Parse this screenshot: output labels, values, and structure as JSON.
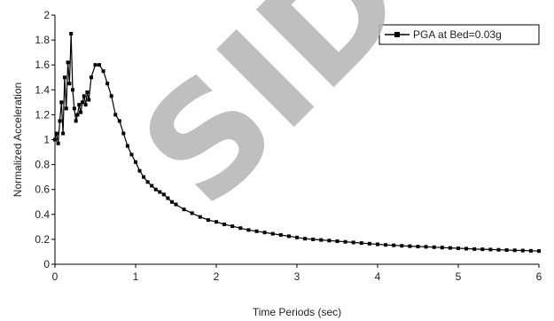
{
  "chart_data": {
    "type": "line",
    "xlabel": "Time Periods (sec)",
    "ylabel": "Normalized Acceleration",
    "xlim": [
      0,
      6
    ],
    "ylim": [
      0,
      2
    ],
    "xticks": [
      0,
      1,
      2,
      3,
      4,
      5,
      6
    ],
    "yticks": [
      0,
      0.2,
      0.4,
      0.6,
      0.8,
      1,
      1.2,
      1.4,
      1.6,
      1.8,
      2
    ],
    "ytick_labels": [
      "0",
      "0.2",
      "0.4",
      "0.6",
      "0.8",
      "1",
      "1.2",
      "1.4",
      "1.6",
      "1.8",
      "2"
    ],
    "grid": false,
    "legend_position": "top-right",
    "watermark": "SID",
    "series": [
      {
        "name": "PGA at Bed=0.03g",
        "color": "#000000",
        "marker": "square",
        "x": [
          0.0,
          0.02,
          0.04,
          0.06,
          0.08,
          0.1,
          0.12,
          0.14,
          0.16,
          0.18,
          0.2,
          0.22,
          0.24,
          0.26,
          0.28,
          0.3,
          0.32,
          0.34,
          0.36,
          0.38,
          0.4,
          0.42,
          0.45,
          0.5,
          0.55,
          0.6,
          0.65,
          0.7,
          0.75,
          0.8,
          0.85,
          0.9,
          0.95,
          1.0,
          1.05,
          1.1,
          1.15,
          1.2,
          1.25,
          1.3,
          1.35,
          1.4,
          1.45,
          1.5,
          1.6,
          1.7,
          1.8,
          1.9,
          2.0,
          2.1,
          2.2,
          2.3,
          2.4,
          2.5,
          2.6,
          2.7,
          2.8,
          2.9,
          3.0,
          3.1,
          3.2,
          3.3,
          3.4,
          3.5,
          3.6,
          3.7,
          3.8,
          3.9,
          4.0,
          4.1,
          4.2,
          4.3,
          4.4,
          4.5,
          4.6,
          4.7,
          4.8,
          4.9,
          5.0,
          5.1,
          5.2,
          5.3,
          5.4,
          5.5,
          5.6,
          5.7,
          5.8,
          5.9,
          6.0
        ],
        "y": [
          1.0,
          1.05,
          0.97,
          1.15,
          1.3,
          1.05,
          1.5,
          1.25,
          1.62,
          1.45,
          1.85,
          1.4,
          1.25,
          1.15,
          1.2,
          1.28,
          1.22,
          1.3,
          1.35,
          1.28,
          1.38,
          1.32,
          1.5,
          1.6,
          1.6,
          1.55,
          1.45,
          1.35,
          1.2,
          1.15,
          1.05,
          0.95,
          0.88,
          0.82,
          0.75,
          0.7,
          0.66,
          0.63,
          0.6,
          0.58,
          0.56,
          0.53,
          0.5,
          0.48,
          0.44,
          0.41,
          0.38,
          0.355,
          0.34,
          0.32,
          0.305,
          0.29,
          0.275,
          0.265,
          0.255,
          0.245,
          0.235,
          0.225,
          0.215,
          0.205,
          0.2,
          0.195,
          0.19,
          0.185,
          0.18,
          0.175,
          0.17,
          0.165,
          0.16,
          0.155,
          0.152,
          0.148,
          0.145,
          0.142,
          0.14,
          0.137,
          0.134,
          0.131,
          0.128,
          0.125,
          0.122,
          0.12,
          0.118,
          0.116,
          0.114,
          0.112,
          0.11,
          0.108,
          0.106
        ]
      }
    ]
  }
}
